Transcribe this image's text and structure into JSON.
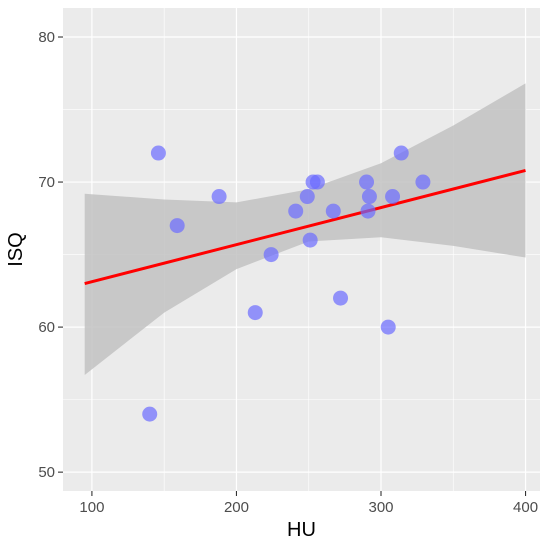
{
  "chart_data": {
    "type": "scatter",
    "title": "",
    "xlabel": "HU",
    "ylabel": "ISQ",
    "xlim": [
      80,
      410
    ],
    "ylim": [
      48.7,
      82
    ],
    "x_ticks": [
      100,
      200,
      300,
      400
    ],
    "y_ticks": [
      50,
      60,
      70,
      80
    ],
    "x_tick_labels": [
      "100",
      "200",
      "300",
      "400"
    ],
    "y_tick_labels": [
      "50",
      "60",
      "70",
      "80"
    ],
    "grid": true,
    "points": [
      {
        "x": 140,
        "y": 54
      },
      {
        "x": 146,
        "y": 72
      },
      {
        "x": 159,
        "y": 67
      },
      {
        "x": 188,
        "y": 69
      },
      {
        "x": 213,
        "y": 61
      },
      {
        "x": 224,
        "y": 65
      },
      {
        "x": 241,
        "y": 68
      },
      {
        "x": 249,
        "y": 69
      },
      {
        "x": 251,
        "y": 66
      },
      {
        "x": 253,
        "y": 70
      },
      {
        "x": 256,
        "y": 70
      },
      {
        "x": 267,
        "y": 68
      },
      {
        "x": 272,
        "y": 62
      },
      {
        "x": 290,
        "y": 70
      },
      {
        "x": 291,
        "y": 68
      },
      {
        "x": 292,
        "y": 69
      },
      {
        "x": 305,
        "y": 60
      },
      {
        "x": 308,
        "y": 69
      },
      {
        "x": 314,
        "y": 72
      },
      {
        "x": 329,
        "y": 70
      }
    ],
    "regression_line": {
      "x": [
        95,
        400
      ],
      "y": [
        63.0,
        70.8
      ]
    },
    "confidence_band": {
      "x": [
        95,
        150,
        200,
        250,
        300,
        350,
        400
      ],
      "upper": [
        69.2,
        68.8,
        68.6,
        69.5,
        71.3,
        73.9,
        76.8
      ],
      "lower": [
        56.7,
        61.0,
        64.0,
        65.9,
        66.2,
        65.6,
        64.8
      ]
    },
    "colors": {
      "panel": "#ebebeb",
      "grid": "#ffffff",
      "points": "#6b6bff",
      "line": "#ff0000",
      "band": "#c2c2c2"
    }
  }
}
